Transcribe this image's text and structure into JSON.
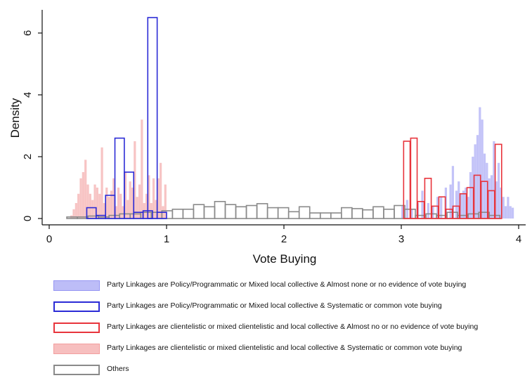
{
  "chart_data": {
    "type": "histogram",
    "xlabel": "Vote Buying",
    "ylabel": "Density",
    "xlim": [
      0,
      4
    ],
    "ylim": [
      0,
      6.5
    ],
    "xticks": [
      "0",
      "1",
      "2",
      "3",
      "4"
    ],
    "yticks": [
      "0",
      "2",
      "4",
      "6"
    ],
    "grid": false,
    "legend_position": "bottom",
    "series": [
      {
        "name": "Party Linkages are Policy/Programmatic or Mixed local collective & Almost none or no evidence of vote buying",
        "style": "filled",
        "color": "#7b7bf0",
        "fill_opacity": 0.45,
        "bin_width": 0.0217,
        "bins": [
          [
            3.0,
            0.4
          ],
          [
            3.04,
            0.6
          ],
          [
            3.08,
            0.3
          ],
          [
            3.13,
            0.5
          ],
          [
            3.17,
            0.9
          ],
          [
            3.22,
            0.5
          ],
          [
            3.26,
            0.4
          ],
          [
            3.3,
            0.7
          ],
          [
            3.33,
            0.7
          ],
          [
            3.37,
            1.0
          ],
          [
            3.41,
            1.1
          ],
          [
            3.43,
            1.7
          ],
          [
            3.46,
            0.9
          ],
          [
            3.48,
            1.2
          ],
          [
            3.5,
            0.8
          ],
          [
            3.52,
            0.9
          ],
          [
            3.54,
            1.0
          ],
          [
            3.56,
            0.7
          ],
          [
            3.58,
            1.5
          ],
          [
            3.6,
            2.0
          ],
          [
            3.62,
            2.4
          ],
          [
            3.64,
            2.7
          ],
          [
            3.66,
            3.6
          ],
          [
            3.68,
            3.2
          ],
          [
            3.7,
            2.1
          ],
          [
            3.72,
            1.8
          ],
          [
            3.74,
            1.3
          ],
          [
            3.76,
            1.4
          ],
          [
            3.78,
            2.5
          ],
          [
            3.8,
            1.2
          ],
          [
            3.82,
            1.8
          ],
          [
            3.84,
            1.0
          ],
          [
            3.86,
            0.7
          ],
          [
            3.88,
            0.4
          ],
          [
            3.9,
            0.7
          ],
          [
            3.92,
            0.4
          ],
          [
            3.94,
            0.35
          ]
        ]
      },
      {
        "name": "Party Linkages are Policy/Programmatic or Mixed local collective & Systematic or common vote buying",
        "style": "outline",
        "color": "#2b2bd6",
        "bin_width": 0.08,
        "bins": [
          [
            0.32,
            0.35
          ],
          [
            0.4,
            0.1
          ],
          [
            0.48,
            0.75
          ],
          [
            0.56,
            2.6
          ],
          [
            0.64,
            1.5
          ],
          [
            0.72,
            0.2
          ],
          [
            0.8,
            0.25
          ],
          [
            0.84,
            6.5
          ],
          [
            0.92,
            0.2
          ]
        ]
      },
      {
        "name": "Party Linkages are clientelistic or mixed clientelistic and local collective  &  Almost no or no evidence of vote buying",
        "style": "outline",
        "color": "#e8343c",
        "bin_width": 0.055,
        "bins": [
          [
            3.02,
            2.5
          ],
          [
            3.08,
            2.6
          ],
          [
            3.14,
            0.55
          ],
          [
            3.2,
            1.3
          ],
          [
            3.26,
            0.4
          ],
          [
            3.32,
            0.7
          ],
          [
            3.38,
            0.3
          ],
          [
            3.44,
            0.4
          ],
          [
            3.5,
            0.8
          ],
          [
            3.56,
            1.0
          ],
          [
            3.62,
            1.4
          ],
          [
            3.68,
            1.2
          ],
          [
            3.74,
            0.9
          ],
          [
            3.8,
            2.4
          ]
        ]
      },
      {
        "name": "Party Linkages are clientelistic or mixed clientelistic and local collective &  Systematic or common vote buying",
        "style": "filled",
        "color": "#f08a8a",
        "fill_opacity": 0.5,
        "bin_width": 0.0217,
        "bins": [
          [
            0.18,
            0.1
          ],
          [
            0.2,
            0.3
          ],
          [
            0.22,
            0.5
          ],
          [
            0.24,
            0.8
          ],
          [
            0.26,
            1.3
          ],
          [
            0.28,
            1.5
          ],
          [
            0.3,
            1.9
          ],
          [
            0.32,
            1.1
          ],
          [
            0.34,
            0.8
          ],
          [
            0.36,
            0.6
          ],
          [
            0.38,
            1.1
          ],
          [
            0.4,
            1.0
          ],
          [
            0.42,
            0.8
          ],
          [
            0.44,
            2.3
          ],
          [
            0.46,
            0.5
          ],
          [
            0.48,
            1.0
          ],
          [
            0.5,
            0.7
          ],
          [
            0.52,
            0.9
          ],
          [
            0.54,
            1.3
          ],
          [
            0.56,
            0.4
          ],
          [
            0.58,
            1.0
          ],
          [
            0.6,
            0.8
          ],
          [
            0.62,
            0.4
          ],
          [
            0.64,
            1.5
          ],
          [
            0.66,
            0.6
          ],
          [
            0.68,
            1.2
          ],
          [
            0.7,
            1.0
          ],
          [
            0.72,
            2.5
          ],
          [
            0.74,
            0.7
          ],
          [
            0.76,
            1.1
          ],
          [
            0.78,
            3.2
          ],
          [
            0.8,
            0.5
          ],
          [
            0.82,
            0.8
          ],
          [
            0.84,
            1.4
          ],
          [
            0.86,
            0.5
          ],
          [
            0.88,
            1.3
          ],
          [
            0.9,
            0.6
          ],
          [
            0.92,
            1.3
          ],
          [
            0.94,
            1.8
          ],
          [
            0.96,
            0.4
          ],
          [
            0.98,
            1.1
          ]
        ]
      },
      {
        "name": "Others",
        "style": "outline",
        "color": "#8a8a8a",
        "bin_width": 0.09,
        "bins": [
          [
            0.15,
            0.05
          ],
          [
            0.24,
            0.05
          ],
          [
            0.33,
            0.08
          ],
          [
            0.42,
            0.05
          ],
          [
            0.51,
            0.1
          ],
          [
            0.6,
            0.15
          ],
          [
            0.69,
            0.15
          ],
          [
            0.78,
            0.2
          ],
          [
            0.87,
            0.2
          ],
          [
            0.96,
            0.25
          ],
          [
            1.05,
            0.3
          ],
          [
            1.14,
            0.3
          ],
          [
            1.23,
            0.45
          ],
          [
            1.32,
            0.38
          ],
          [
            1.41,
            0.55
          ],
          [
            1.5,
            0.45
          ],
          [
            1.59,
            0.38
          ],
          [
            1.68,
            0.42
          ],
          [
            1.77,
            0.48
          ],
          [
            1.86,
            0.35
          ],
          [
            1.95,
            0.35
          ],
          [
            2.04,
            0.22
          ],
          [
            2.13,
            0.38
          ],
          [
            2.22,
            0.18
          ],
          [
            2.31,
            0.18
          ],
          [
            2.4,
            0.18
          ],
          [
            2.49,
            0.35
          ],
          [
            2.58,
            0.32
          ],
          [
            2.67,
            0.28
          ],
          [
            2.76,
            0.38
          ],
          [
            2.85,
            0.3
          ],
          [
            2.94,
            0.42
          ],
          [
            3.03,
            0.3
          ],
          [
            3.12,
            0.1
          ],
          [
            3.21,
            0.15
          ],
          [
            3.3,
            0.1
          ],
          [
            3.39,
            0.2
          ],
          [
            3.48,
            0.1
          ],
          [
            3.57,
            0.15
          ],
          [
            3.66,
            0.2
          ],
          [
            3.75,
            0.1
          ]
        ]
      }
    ]
  }
}
